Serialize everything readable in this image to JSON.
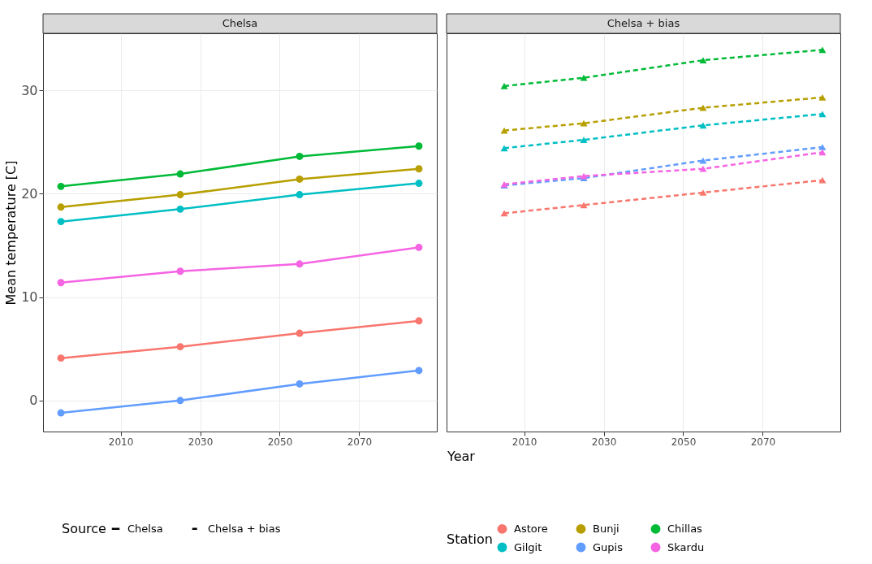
{
  "chart_data": [
    {
      "type": "line",
      "title": "Chelsa",
      "xlabel": "Year",
      "ylabel": "Mean temperature [C]",
      "legend_title": "Station",
      "annotations": [
        "Source"
      ],
      "legend": "bottom",
      "grid": true,
      "marker": "circle",
      "line_style": "solid",
      "x": [
        1995,
        2025,
        2055,
        2085
      ],
      "xlim": [
        1990.5,
        2089.5
      ],
      "xticks": [
        2010,
        2030,
        2050,
        2070
      ],
      "ylim": [
        -3,
        35.5
      ],
      "yticks": [
        0,
        10,
        20,
        30
      ],
      "series": [
        {
          "name": "Astore",
          "color": "#f8766d",
          "values": [
            4.1,
            5.2,
            6.5,
            7.7
          ]
        },
        {
          "name": "Bunji",
          "color": "#b79f00",
          "values": [
            18.7,
            19.9,
            21.4,
            22.4
          ]
        },
        {
          "name": "Chillas",
          "color": "#00ba38",
          "values": [
            20.7,
            21.9,
            23.6,
            24.6
          ]
        },
        {
          "name": "Gilgit",
          "color": "#00bfc4",
          "values": [
            17.3,
            18.5,
            19.9,
            21.0
          ]
        },
        {
          "name": "Gupis",
          "color": "#619cff",
          "values": [
            -1.2,
            0,
            1.6,
            2.9
          ]
        },
        {
          "name": "Skardu",
          "color": "#f564e3",
          "values": [
            11.4,
            12.5,
            13.2,
            14.8
          ]
        }
      ]
    },
    {
      "type": "line",
      "title": "Chelsa + bias",
      "grid": true,
      "marker": "triangle",
      "line_style": "dashed",
      "tick_labels": "x",
      "x": [
        2005,
        2025,
        2055,
        2085
      ],
      "xlim": [
        1990.5,
        2089.5
      ],
      "xticks": [
        2010,
        2030,
        2050,
        2070
      ],
      "ylim": [
        -3,
        35.5
      ],
      "series": [
        {
          "name": "Astore",
          "color": "#f8766d",
          "values": [
            18.1,
            18.9,
            20.1,
            21.3
          ]
        },
        {
          "name": "Bunji",
          "color": "#b79f00",
          "values": [
            26.1,
            26.8,
            28.3,
            29.3
          ]
        },
        {
          "name": "Chillas",
          "color": "#00ba38",
          "values": [
            30.4,
            31.2,
            32.9,
            33.9
          ]
        },
        {
          "name": "Gilgit",
          "color": "#00bfc4",
          "values": [
            24.4,
            25.2,
            26.6,
            27.7
          ]
        },
        {
          "name": "Gupis",
          "color": "#619cff",
          "values": [
            20.8,
            21.5,
            23.2,
            24.5
          ]
        },
        {
          "name": "Skardu",
          "color": "#f564e3",
          "values": [
            20.9,
            21.7,
            22.4,
            24.0
          ]
        }
      ]
    }
  ]
}
